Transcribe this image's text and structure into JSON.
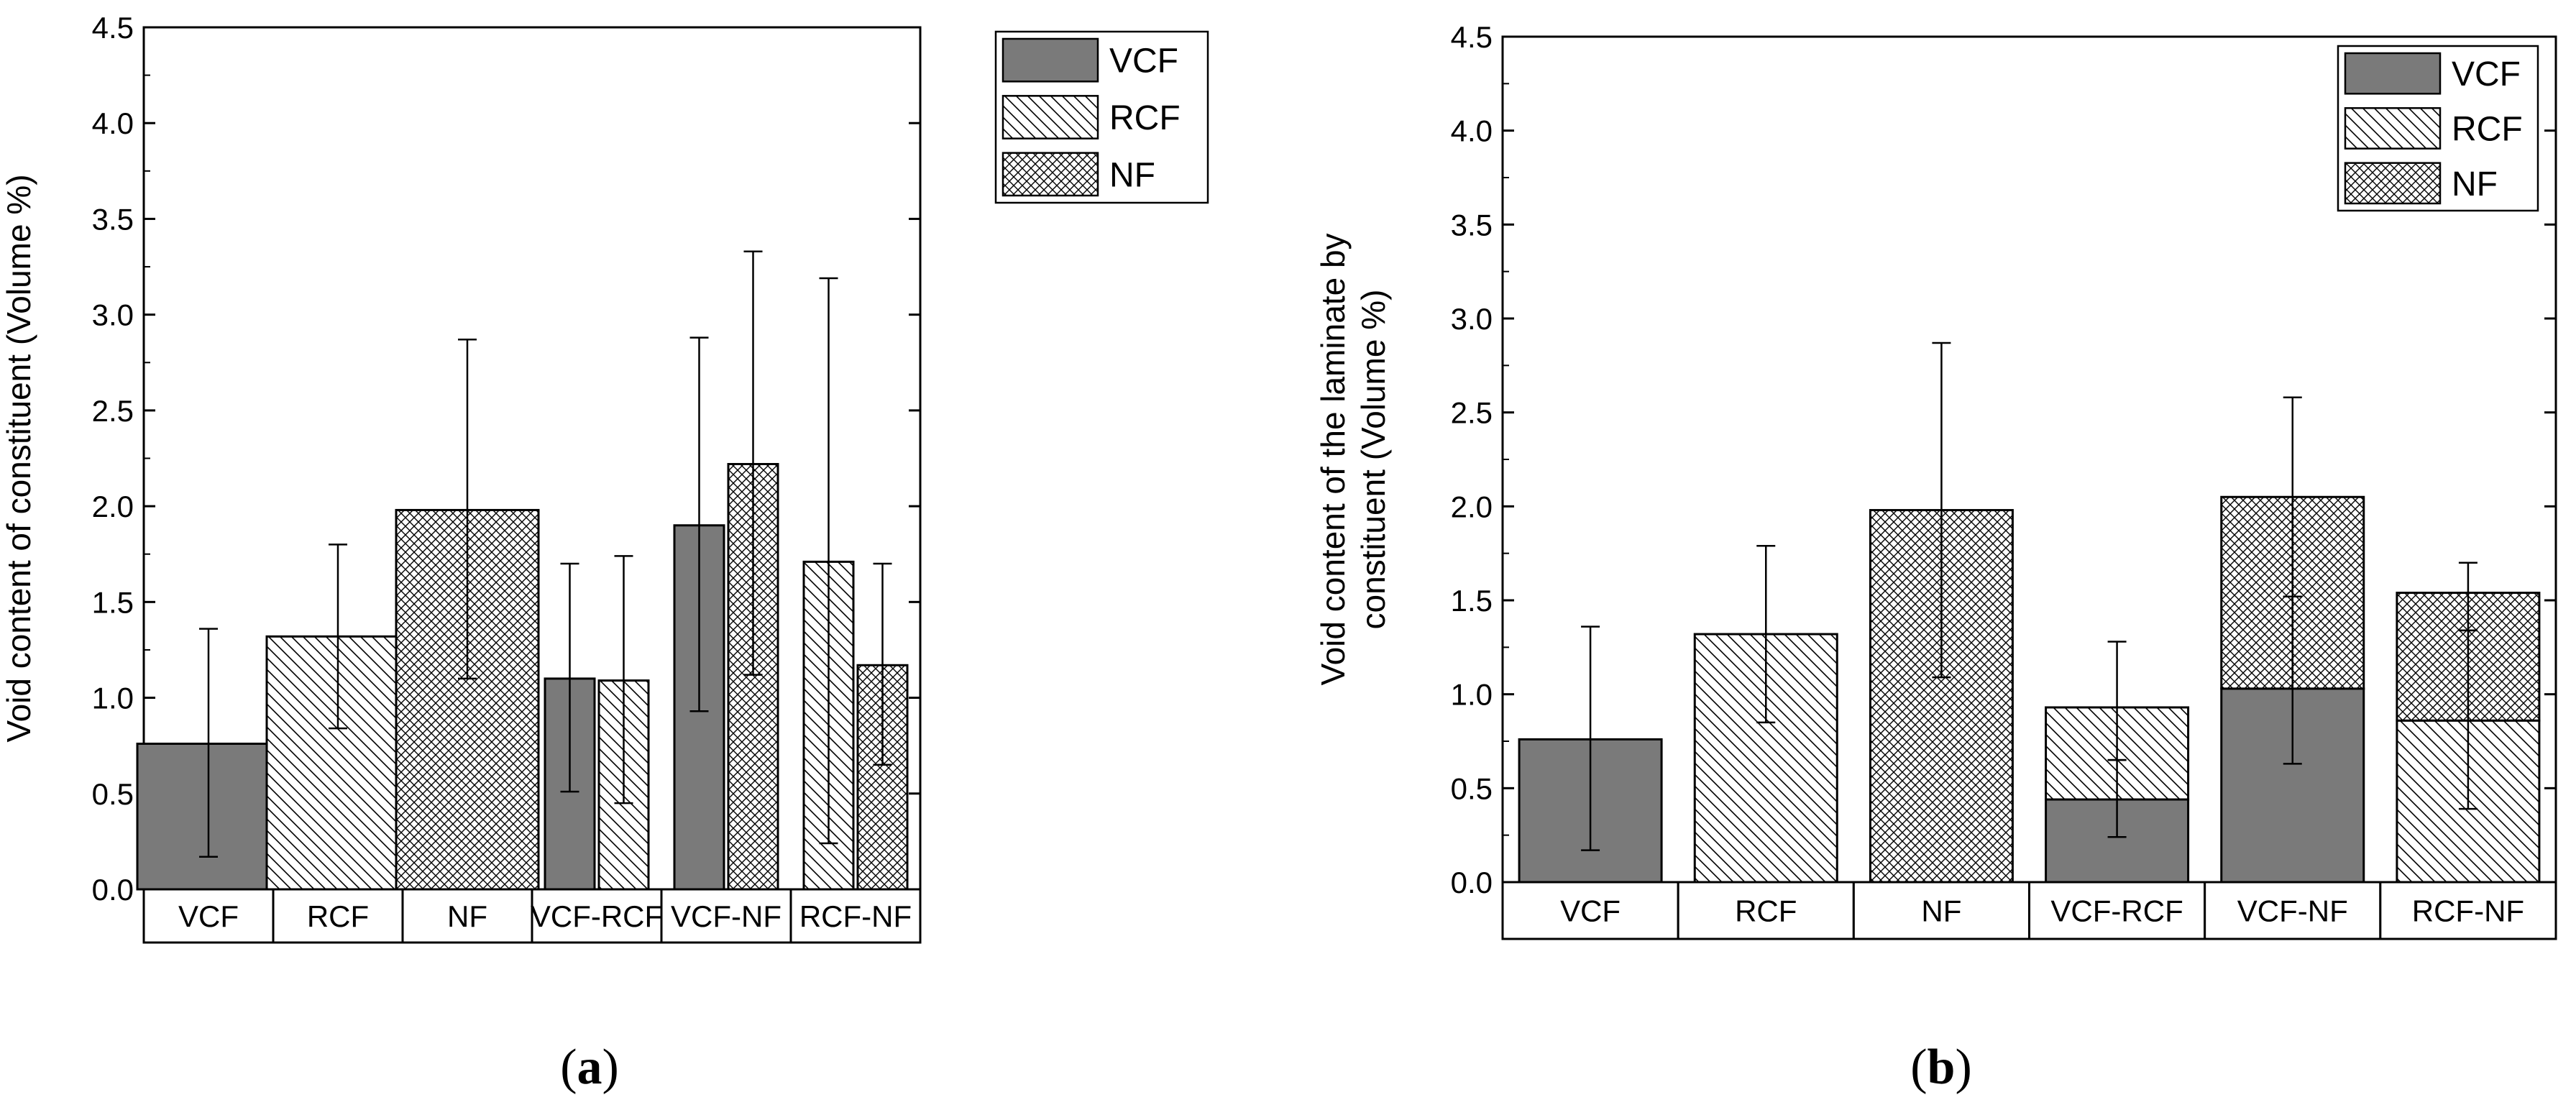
{
  "colors": {
    "vcf_fill": "#7a7a7a",
    "stroke": "#000000",
    "background": "#ffffff"
  },
  "chart_data": [
    {
      "type": "bar",
      "caption_letter": "a",
      "title": "",
      "ylabel": "Void content of constituent (Volume %)",
      "xlabel": "",
      "ylim": [
        0,
        4.5
      ],
      "yticks": [
        "0.0",
        "0.5",
        "1.0",
        "1.5",
        "2.0",
        "2.5",
        "3.0",
        "3.5",
        "4.0",
        "4.5"
      ],
      "categories": [
        "VCF",
        "RCF",
        "NF",
        "VCF-RCF",
        "VCF-NF",
        "RCF-NF"
      ],
      "legend": {
        "position": "top-right",
        "entries": [
          {
            "label": "VCF",
            "pattern": "solid"
          },
          {
            "label": "RCF",
            "pattern": "hatch"
          },
          {
            "label": "NF",
            "pattern": "cross"
          }
        ]
      },
      "bars": [
        {
          "category": "VCF",
          "series": "VCF",
          "pattern": "solid",
          "value": 0.76,
          "err_low": 0.17,
          "err_high": 1.36
        },
        {
          "category": "RCF",
          "series": "RCF",
          "pattern": "hatch",
          "value": 1.32,
          "err_low": 0.84,
          "err_high": 1.8
        },
        {
          "category": "NF",
          "series": "NF",
          "pattern": "cross",
          "value": 1.98,
          "err_low": 1.1,
          "err_high": 2.87
        },
        {
          "category": "VCF-RCF",
          "series": "VCF",
          "pattern": "solid",
          "value": 1.1,
          "err_low": 0.51,
          "err_high": 1.7
        },
        {
          "category": "VCF-RCF",
          "series": "RCF",
          "pattern": "hatch",
          "value": 1.09,
          "err_low": 0.45,
          "err_high": 1.74
        },
        {
          "category": "VCF-NF",
          "series": "VCF",
          "pattern": "solid",
          "value": 1.9,
          "err_low": 0.93,
          "err_high": 2.88
        },
        {
          "category": "VCF-NF",
          "series": "NF",
          "pattern": "cross",
          "value": 2.22,
          "err_low": 1.12,
          "err_high": 3.33
        },
        {
          "category": "RCF-NF",
          "series": "RCF",
          "pattern": "hatch",
          "value": 1.71,
          "err_low": 0.24,
          "err_high": 3.19
        },
        {
          "category": "RCF-NF",
          "series": "NF",
          "pattern": "cross",
          "value": 1.17,
          "err_low": 0.65,
          "err_high": 1.7
        }
      ]
    },
    {
      "type": "bar",
      "stacked": true,
      "caption_letter": "b",
      "title": "",
      "ylabel_lines": [
        "Void content of the laminate by",
        "constituent (Volume %)"
      ],
      "xlabel": "",
      "ylim": [
        0,
        4.5
      ],
      "yticks": [
        "0.0",
        "0.5",
        "1.0",
        "1.5",
        "2.0",
        "2.5",
        "3.0",
        "3.5",
        "4.0",
        "4.5"
      ],
      "categories": [
        "VCF",
        "RCF",
        "NF",
        "VCF-RCF",
        "VCF-NF",
        "RCF-NF"
      ],
      "legend": {
        "position": "top-right",
        "entries": [
          {
            "label": "VCF",
            "pattern": "solid"
          },
          {
            "label": "RCF",
            "pattern": "hatch"
          },
          {
            "label": "NF",
            "pattern": "cross"
          }
        ]
      },
      "bars": [
        {
          "category": "VCF",
          "segments": [
            {
              "series": "VCF",
              "pattern": "solid",
              "value": 0.76
            }
          ],
          "errors": [
            {
              "at": 0.76,
              "low": 0.17,
              "high": 1.36
            }
          ]
        },
        {
          "category": "RCF",
          "segments": [
            {
              "series": "RCF",
              "pattern": "hatch",
              "value": 1.32
            }
          ],
          "errors": [
            {
              "at": 1.32,
              "low": 0.85,
              "high": 1.79
            }
          ]
        },
        {
          "category": "NF",
          "segments": [
            {
              "series": "NF",
              "pattern": "cross",
              "value": 1.98
            }
          ],
          "errors": [
            {
              "at": 1.98,
              "low": 1.09,
              "high": 2.87
            }
          ]
        },
        {
          "category": "VCF-RCF",
          "segments": [
            {
              "series": "VCF",
              "pattern": "solid",
              "value": 0.44
            },
            {
              "series": "RCF",
              "pattern": "hatch",
              "value": 0.49
            }
          ],
          "errors": [
            {
              "at": 0.44,
              "low": 0.24,
              "high": 0.65
            },
            {
              "at": 0.93,
              "low": 0.65,
              "high": 1.28
            }
          ]
        },
        {
          "category": "VCF-NF",
          "segments": [
            {
              "series": "VCF",
              "pattern": "solid",
              "value": 1.03
            },
            {
              "series": "NF",
              "pattern": "cross",
              "value": 1.02
            }
          ],
          "errors": [
            {
              "at": 1.03,
              "low": 0.63,
              "high": 1.52
            },
            {
              "at": 2.05,
              "low": 1.52,
              "high": 2.58
            }
          ]
        },
        {
          "category": "RCF-NF",
          "segments": [
            {
              "series": "RCF",
              "pattern": "hatch",
              "value": 0.86
            },
            {
              "series": "NF",
              "pattern": "cross",
              "value": 0.68
            }
          ],
          "errors": [
            {
              "at": 0.86,
              "low": 0.39,
              "high": 1.34
            },
            {
              "at": 1.54,
              "low": 1.34,
              "high": 1.7
            }
          ]
        }
      ]
    }
  ]
}
